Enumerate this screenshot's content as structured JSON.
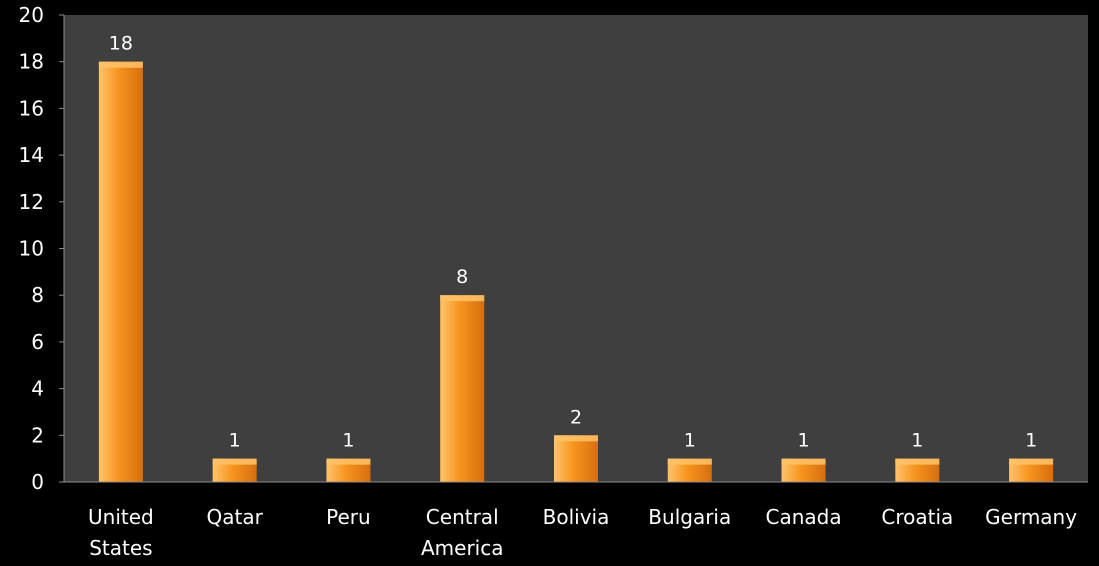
{
  "chart_data": {
    "type": "bar",
    "categories": [
      "United States",
      "Qatar",
      "Peru",
      "Central America",
      "Bolivia",
      "Bulgaria",
      "Canada",
      "Croatia",
      "Germany"
    ],
    "category_lines": [
      [
        "United",
        "States"
      ],
      [
        "Qatar"
      ],
      [
        "Peru"
      ],
      [
        "Central",
        "America"
      ],
      [
        "Bolivia"
      ],
      [
        "Bulgaria"
      ],
      [
        "Canada"
      ],
      [
        "Croatia"
      ],
      [
        "Germany"
      ]
    ],
    "values": [
      18,
      1,
      1,
      8,
      2,
      1,
      1,
      1,
      1
    ],
    "data_labels": [
      "18",
      "1",
      "1",
      "8",
      "2",
      "1",
      "1",
      "1",
      "1"
    ],
    "yticks": [
      "0",
      "2",
      "4",
      "6",
      "8",
      "10",
      "12",
      "14",
      "16",
      "18",
      "20"
    ],
    "ylim": [
      0,
      20
    ],
    "grid": false,
    "legend": "none",
    "title": "",
    "xlabel": "",
    "ylabel": "",
    "colors": {
      "page_background": "#000000",
      "plot_background": "#3f3f3f",
      "bar_fill_light": "#ffc36a",
      "bar_fill_mid": "#f7941d",
      "bar_fill_dark": "#d56f10",
      "text": "#ffffff",
      "axis_line": "#8c8c8c"
    }
  }
}
